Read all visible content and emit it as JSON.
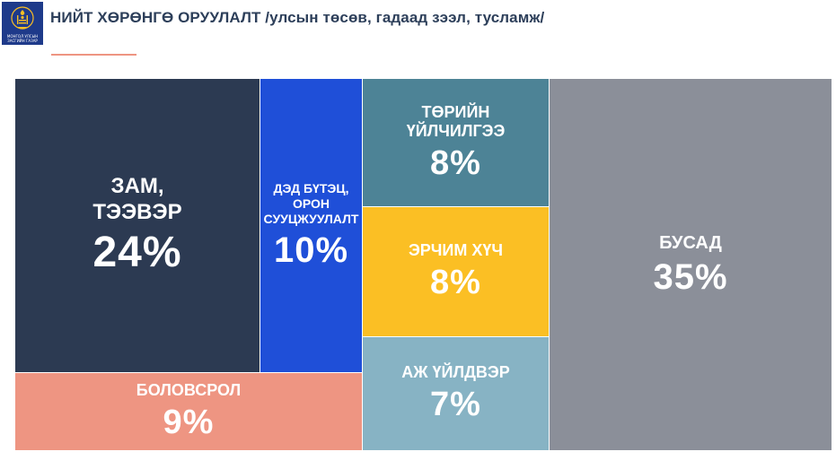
{
  "header": {
    "title": "НИЙТ ХӨРӨНГӨ ОРУУЛАЛТ /улсын төсөв, гадаад зээл, тусламж/",
    "logo_text_line1": "МОНГОЛ УЛСЫН",
    "logo_text_line2": "ЗАСГИЙН ГАЗАР",
    "logo_icon": "soyombo-emblem-icon"
  },
  "chart_data": {
    "type": "treemap",
    "title": "НИЙТ ХӨРӨНГӨ ОРУУЛАЛТ /улсын төсөв, гадаад зээл, тусламж/",
    "unit": "%",
    "items": [
      {
        "label": "ЗАМ,\nТЭЭВЭР",
        "value": 24,
        "display": "24%",
        "color": "#2c3a52"
      },
      {
        "label": "ДЭД БҮТЭЦ,\nОРОН\nСУУЦЖУУЛАЛТ",
        "value": 10,
        "display": "10%",
        "color": "#1f4fd8"
      },
      {
        "label": "ТӨРИЙН\nҮЙЛЧИЛГЭЭ",
        "value": 8,
        "display": "8%",
        "color": "#4d8396"
      },
      {
        "label": "ЭРЧИМ ХҮЧ",
        "value": 8,
        "display": "8%",
        "color": "#fbbf24"
      },
      {
        "label": "АЖ ҮЙЛДВЭР",
        "value": 7,
        "display": "7%",
        "color": "#87b3c4"
      },
      {
        "label": "БОЛОВСРОЛ",
        "value": 9,
        "display": "9%",
        "color": "#ee9582"
      },
      {
        "label": "БУСАД",
        "value": 35,
        "display": "35%",
        "color": "#8b8f99"
      }
    ]
  }
}
